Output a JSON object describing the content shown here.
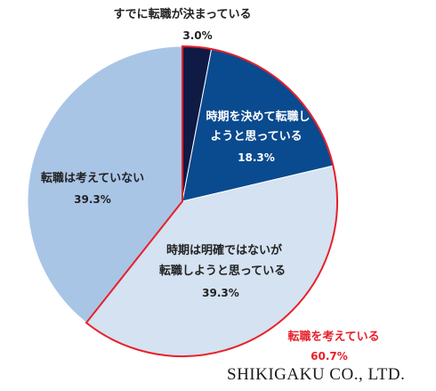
{
  "chart_data": {
    "type": "pie",
    "slices": [
      {
        "label": "すでに転職が決まっている",
        "value": 3.0,
        "value_label": "3.0%",
        "color": "#0f1a45"
      },
      {
        "label_lines": [
          "時期を決めて転職し",
          "ようと思っている"
        ],
        "value": 18.3,
        "value_label": "18.3%",
        "color": "#0a4a8f"
      },
      {
        "label_lines": [
          "時期は明確ではないが",
          "転職しようと思っている"
        ],
        "value": 39.3,
        "value_label": "39.3%",
        "color": "#d4e2f1"
      },
      {
        "label": "転職は考えていない",
        "value": 39.3,
        "value_label": "39.3%",
        "color": "#a9c5e6"
      }
    ],
    "group_annotation": {
      "label": "転職を考えている",
      "value_label": "60.7%",
      "color": "#e8202a"
    }
  },
  "brand": "SHIKIGAKU CO., LTD."
}
